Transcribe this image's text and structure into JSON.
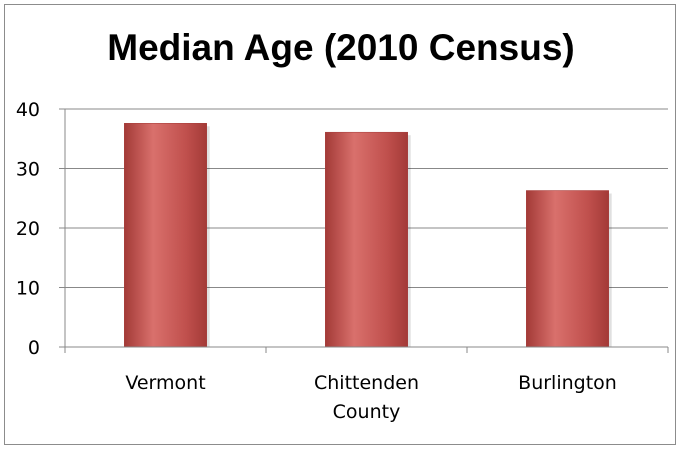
{
  "colors": {
    "bar_fill": "#c0504d",
    "bar_dark": "#a33a37",
    "bar_light": "#d9706c",
    "axis": "#888888",
    "grid": "#888888"
  },
  "chart_data": {
    "type": "bar",
    "title": "Median Age (2010 Census)",
    "categories": [
      "Vermont",
      "Chittenden County",
      "Burlington"
    ],
    "category_lines": [
      [
        "Vermont"
      ],
      [
        "Chittenden",
        "County"
      ],
      [
        "Burlington"
      ]
    ],
    "values": [
      37.6,
      36.1,
      26.3
    ],
    "xlabel": "",
    "ylabel": "",
    "ylim": [
      0,
      40
    ],
    "yticks": [
      "0",
      "10",
      "20",
      "30",
      "40"
    ],
    "grid": true,
    "legend": "none"
  }
}
